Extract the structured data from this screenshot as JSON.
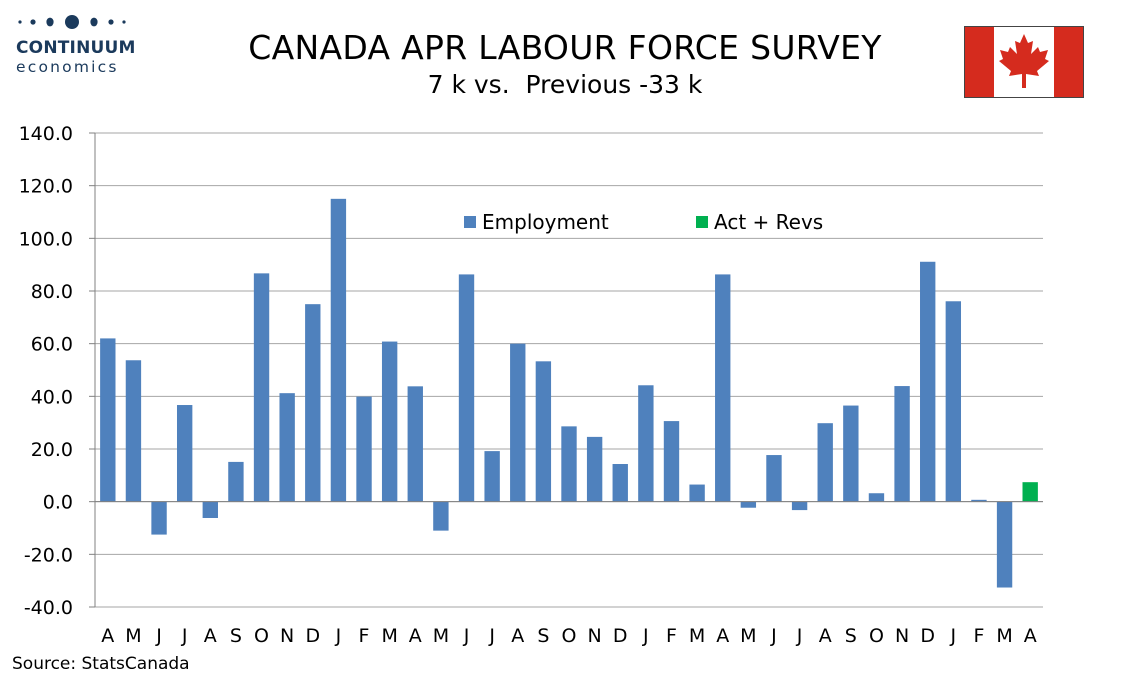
{
  "logo": {
    "name": "CONTINUUM",
    "sub": "economics",
    "dot_color": "#1b3a5c"
  },
  "header": {
    "title": "CANADA APR LABOUR FORCE SURVEY",
    "subtitle": "7 k vs.  Previous -33 k"
  },
  "flag": {
    "red": "#d52b1e",
    "white": "#ffffff",
    "icon": "maple-leaf-icon"
  },
  "source": "Source: StatsCanada",
  "chart_data": {
    "type": "bar",
    "categories": [
      "A",
      "M",
      "J",
      "J",
      "A",
      "S",
      "O",
      "N",
      "D",
      "J",
      "F",
      "M",
      "A",
      "M",
      "J",
      "J",
      "A",
      "S",
      "O",
      "N",
      "D",
      "J",
      "F",
      "M",
      "A",
      "M",
      "J",
      "J",
      "A",
      "S",
      "O",
      "N",
      "D",
      "J",
      "F",
      "M",
      "A"
    ],
    "series": [
      {
        "name": "Employment",
        "color": "#4f81bd",
        "values": [
          62,
          53.7,
          -12.5,
          36.7,
          -6.2,
          15.1,
          86.7,
          41.2,
          75,
          115,
          39.9,
          60.8,
          43.8,
          -11,
          86.3,
          19.2,
          60,
          53.3,
          28.6,
          24.6,
          14.3,
          44.2,
          30.6,
          6.5,
          86.3,
          -2.3,
          17.7,
          -3.2,
          29.8,
          36.5,
          3.2,
          43.9,
          91.1,
          76.1,
          0.7,
          -32.6,
          null
        ]
      },
      {
        "name": "Act + Revs",
        "color": "#00b050",
        "values": [
          null,
          null,
          null,
          null,
          null,
          null,
          null,
          null,
          null,
          null,
          null,
          null,
          null,
          null,
          null,
          null,
          null,
          null,
          null,
          null,
          null,
          null,
          null,
          null,
          null,
          null,
          null,
          null,
          null,
          null,
          null,
          null,
          null,
          null,
          null,
          null,
          7.4
        ]
      }
    ],
    "ylim": [
      -40,
      140
    ],
    "yticks": [
      -40,
      -20,
      0,
      20,
      40,
      60,
      80,
      100,
      120,
      140
    ],
    "grid": true,
    "legend": "top-center",
    "xlabel": "",
    "ylabel": ""
  }
}
